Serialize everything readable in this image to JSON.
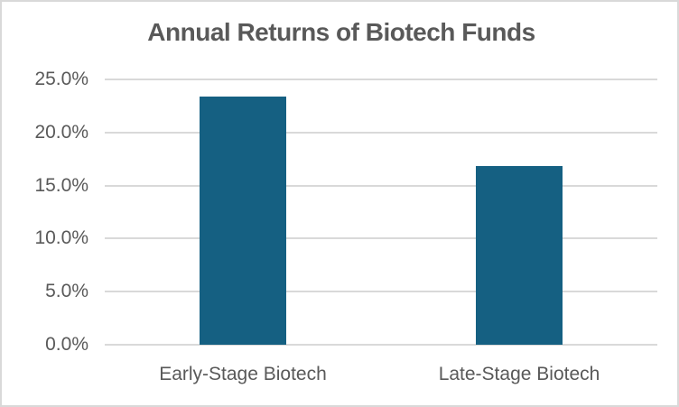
{
  "chart_data": {
    "type": "bar",
    "title": "Annual Returns of Biotech Funds",
    "categories": [
      "Early-Stage Biotech",
      "Late-Stage Biotech"
    ],
    "values": [
      23.4,
      16.8
    ],
    "unit": "percent",
    "xlabel": "",
    "ylabel": "",
    "ylim": [
      0,
      25
    ],
    "ytick_step": 5,
    "ytick_labels": [
      "0.0%",
      "5.0%",
      "10.0%",
      "15.0%",
      "20.0%",
      "25.0%"
    ],
    "grid": true,
    "legend": "none",
    "data_labels": false,
    "colors": {
      "bar": "#156082",
      "text": "#595959",
      "gridline": "#D9D9D9",
      "background": "#FFFFFF",
      "border": "#D9D9D9"
    }
  }
}
